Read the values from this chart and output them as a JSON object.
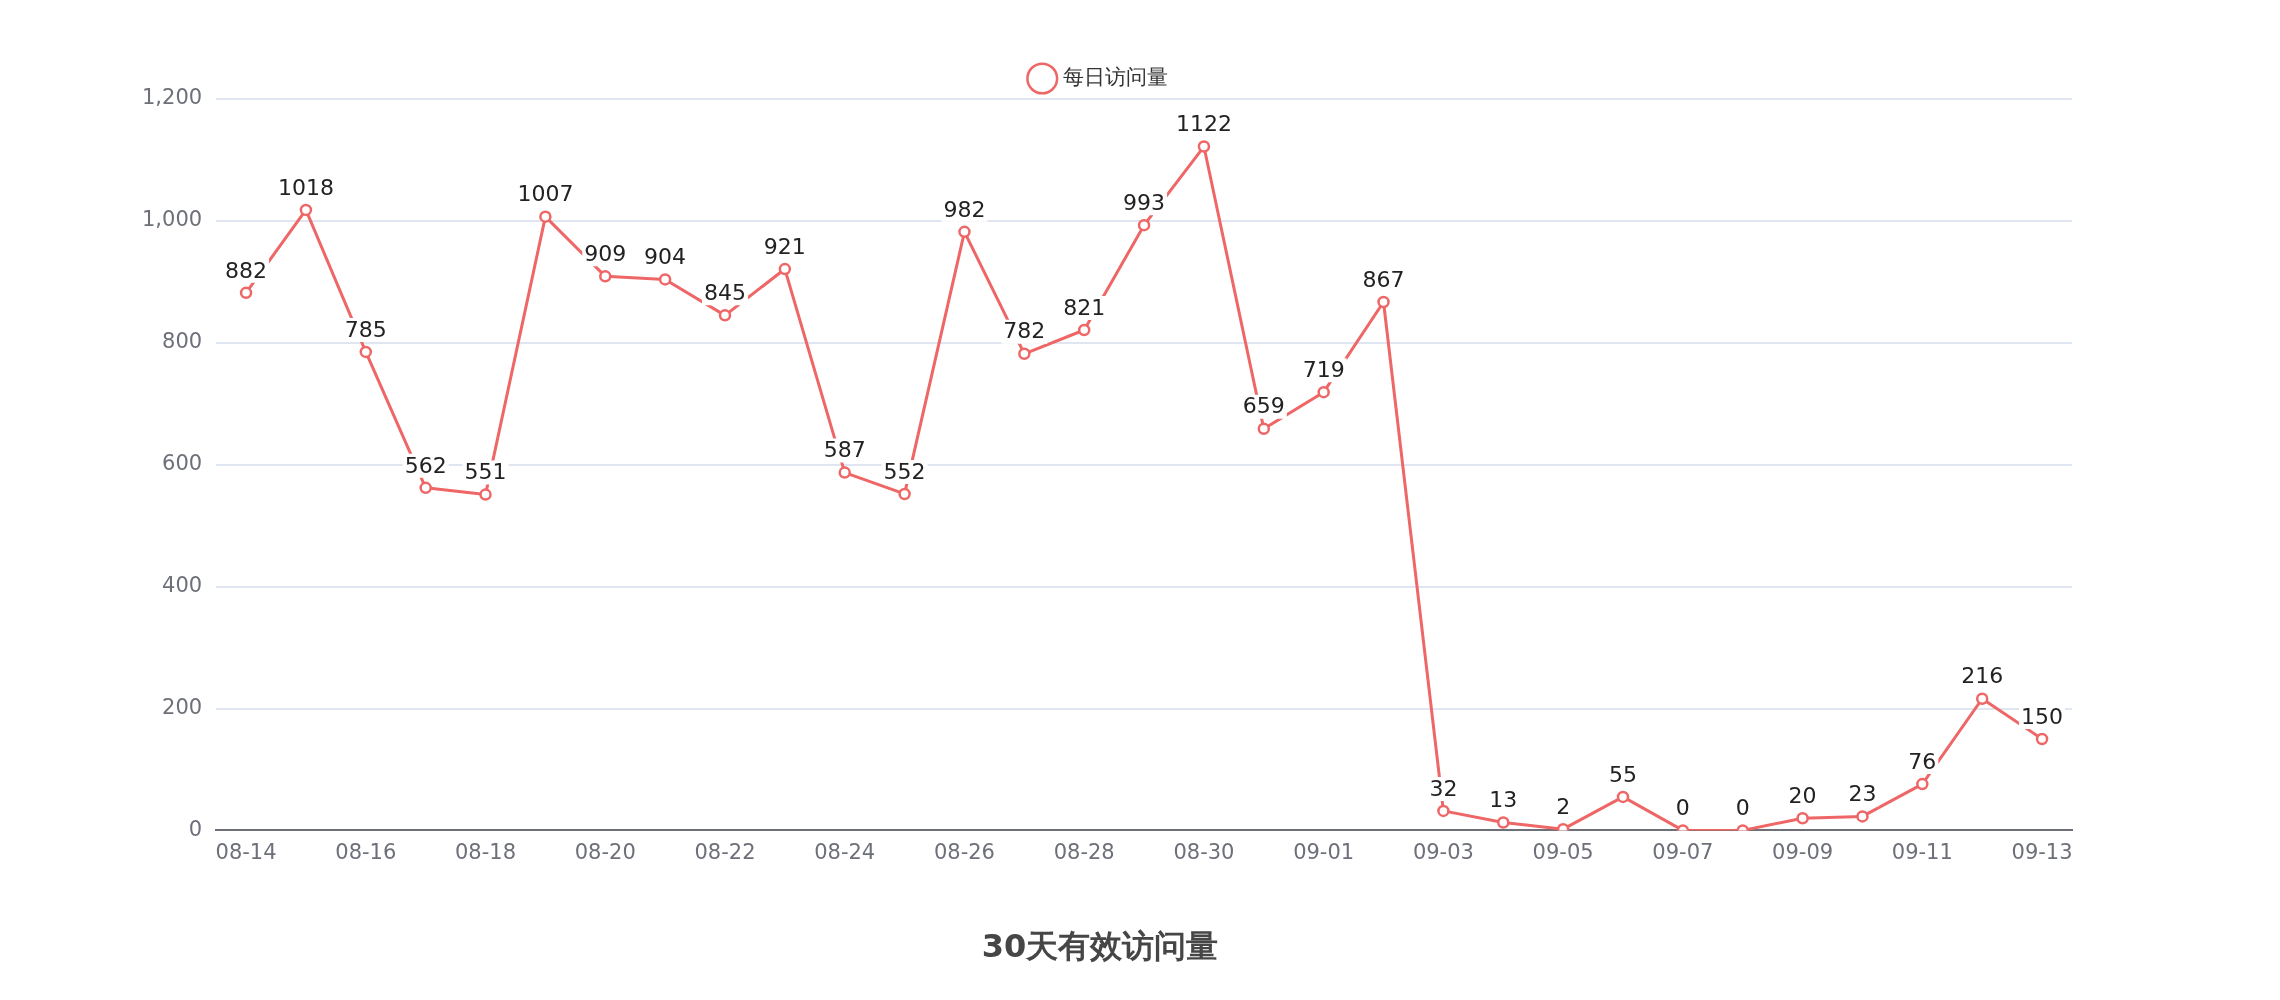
{
  "chart_data": {
    "type": "line",
    "title": "30天有效访问量",
    "categories": [
      "08-14",
      null,
      "08-16",
      null,
      "08-18",
      null,
      "08-20",
      null,
      "08-22",
      null,
      "08-24",
      null,
      "08-26",
      null,
      "08-28",
      null,
      "08-30",
      null,
      "09-01",
      null,
      "09-03",
      null,
      "09-05",
      null,
      "09-07",
      null,
      "09-09",
      null,
      "09-11",
      null,
      "09-13"
    ],
    "series": [
      {
        "name": "每日访问量",
        "color": "#ee6666",
        "values": [
          882,
          1018,
          785,
          562,
          551,
          1007,
          909,
          904,
          845,
          921,
          587,
          552,
          982,
          782,
          821,
          993,
          1122,
          659,
          719,
          867,
          32,
          13,
          2,
          55,
          0,
          0,
          20,
          23,
          76,
          216,
          150
        ]
      }
    ],
    "ylim": [
      0,
      1200
    ],
    "yticks": [
      0,
      {
        "value": 200,
        "label": "200"
      },
      {
        "value": 400,
        "label": "400"
      },
      {
        "value": 600,
        "label": "600"
      },
      {
        "value": 800,
        "label": "800"
      },
      {
        "value": 1000,
        "label": "1,000"
      },
      {
        "value": 1200,
        "label": "1,200"
      }
    ],
    "grid": "y",
    "legend": "top",
    "marker": "circle",
    "line_style": "solid",
    "data_labels": true
  }
}
